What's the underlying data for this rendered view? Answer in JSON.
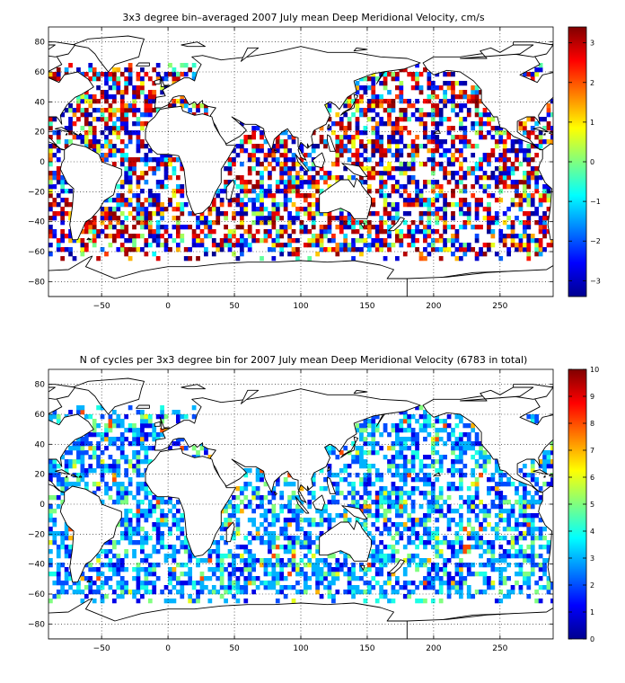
{
  "chart_data": [
    {
      "type": "heatmap",
      "title": "3x3 degree bin–averaged 2007 July mean Deep Meridional Velocity, cm/s",
      "xlabel": "",
      "ylabel": "",
      "xlim": [
        -90,
        290
      ],
      "ylim": [
        -90,
        90
      ],
      "xticks": [
        -50,
        0,
        50,
        100,
        150,
        200,
        250
      ],
      "yticks": [
        80,
        60,
        40,
        20,
        0,
        -20,
        -40,
        -60,
        -80
      ],
      "grid": true,
      "bin_size_deg": 3,
      "colormap": "jet",
      "clim": [
        -3.4,
        3.4
      ],
      "colorbar_ticks": [
        3,
        2,
        1,
        0,
        -1,
        -2,
        -3
      ],
      "sign_pattern": "mixed"
    },
    {
      "type": "heatmap",
      "title": "N of cycles per 3x3 degree bin for 2007 July mean Deep Meridional Velocity (6783 in total)",
      "xlabel": "",
      "ylabel": "",
      "xlim": [
        -90,
        290
      ],
      "ylim": [
        -90,
        90
      ],
      "xticks": [
        -50,
        0,
        50,
        100,
        150,
        200,
        250
      ],
      "yticks": [
        80,
        60,
        40,
        20,
        0,
        -20,
        -40,
        -60,
        -80
      ],
      "grid": true,
      "bin_size_deg": 3,
      "colormap": "jet",
      "clim": [
        0,
        10
      ],
      "colorbar_ticks": [
        10,
        9,
        8,
        7,
        6,
        5,
        4,
        3,
        2,
        1,
        0
      ],
      "total_cycles": 6783
    }
  ]
}
